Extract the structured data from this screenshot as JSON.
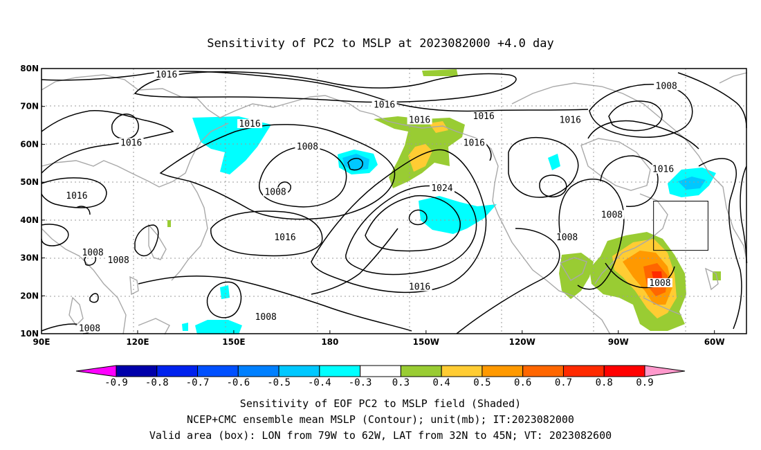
{
  "title": "Sensitivity of PC2 to MSLP at 2023082000 +4.0 day",
  "map": {
    "lon_range_deg_east": [
      90,
      310
    ],
    "lat_range": [
      10,
      80
    ],
    "x_tick_labels": [
      "90E",
      "120E",
      "150E",
      "180",
      "150W",
      "120W",
      "90W",
      "60W"
    ],
    "x_tick_lons_east": [
      90,
      120,
      150,
      180,
      210,
      240,
      270,
      300
    ],
    "y_tick_labels": [
      "10N",
      "20N",
      "30N",
      "40N",
      "50N",
      "60N",
      "70N",
      "80N"
    ],
    "y_tick_lats": [
      10,
      20,
      30,
      40,
      50,
      60,
      70,
      80
    ],
    "gridlines": "dotted",
    "coastline_color": "#a8a8a8",
    "contour_color": "#000000",
    "contour_labels": [
      {
        "text": "1016",
        "lon": 129,
        "lat": 78
      },
      {
        "text": "1016",
        "lon": 197,
        "lat": 70
      },
      {
        "text": "1016",
        "lon": 208,
        "lat": 66
      },
      {
        "text": "1016",
        "lon": 228,
        "lat": 67
      },
      {
        "text": "1016",
        "lon": 255,
        "lat": 66
      },
      {
        "text": "1008",
        "lon": 285,
        "lat": 75
      },
      {
        "text": "1016",
        "lon": 155,
        "lat": 65
      },
      {
        "text": "1016",
        "lon": 118,
        "lat": 60
      },
      {
        "text": "1008",
        "lon": 173,
        "lat": 59
      },
      {
        "text": "1016",
        "lon": 225,
        "lat": 60
      },
      {
        "text": "1016",
        "lon": 101,
        "lat": 46
      },
      {
        "text": "1008",
        "lon": 163,
        "lat": 47
      },
      {
        "text": "1024",
        "lon": 215,
        "lat": 48
      },
      {
        "text": "1016",
        "lon": 284,
        "lat": 53
      },
      {
        "text": "1008",
        "lon": 268,
        "lat": 41
      },
      {
        "text": "1016",
        "lon": 166,
        "lat": 35
      },
      {
        "text": "1008",
        "lon": 254,
        "lat": 35
      },
      {
        "text": "1008",
        "lon": 106,
        "lat": 31
      },
      {
        "text": "1008",
        "lon": 114,
        "lat": 29
      },
      {
        "text": "1016",
        "lon": 208,
        "lat": 22
      },
      {
        "text": "1008",
        "lon": 283,
        "lat": 23
      },
      {
        "text": "1008",
        "lon": 160,
        "lat": 14
      },
      {
        "text": "1008",
        "lon": 105,
        "lat": 11
      }
    ],
    "valid_box": {
      "lon_from": "79W",
      "lon_to": "62W",
      "lat_from": "32N",
      "lat_to": "45N",
      "lon_east": [
        281,
        298
      ],
      "lat": [
        32,
        45
      ]
    }
  },
  "colorbar": {
    "labels": [
      "-0.9",
      "-0.8",
      "-0.7",
      "-0.6",
      "-0.5",
      "-0.4",
      "-0.3",
      "0.3",
      "0.4",
      "0.5",
      "0.6",
      "0.7",
      "0.8",
      "0.9"
    ],
    "colors": [
      "#ff00ff",
      "#0000aa",
      "#0022ee",
      "#0050ff",
      "#0080ff",
      "#00c8ff",
      "#00ffff",
      "#ffffff",
      "#99cc33",
      "#ffcc33",
      "#ff9900",
      "#ff6600",
      "#ff2a00",
      "#ff0000",
      "#ff99cc"
    ]
  },
  "footer": [
    "Sensitivity of EOF PC2 to MSLP field (Shaded)",
    "NCEP+CMC ensemble mean MSLP (Contour); unit(mb); IT:2023082000",
    "Valid area (box): LON from 79W to 62W, LAT from 32N to 45N; VT: 2023082600"
  ]
}
